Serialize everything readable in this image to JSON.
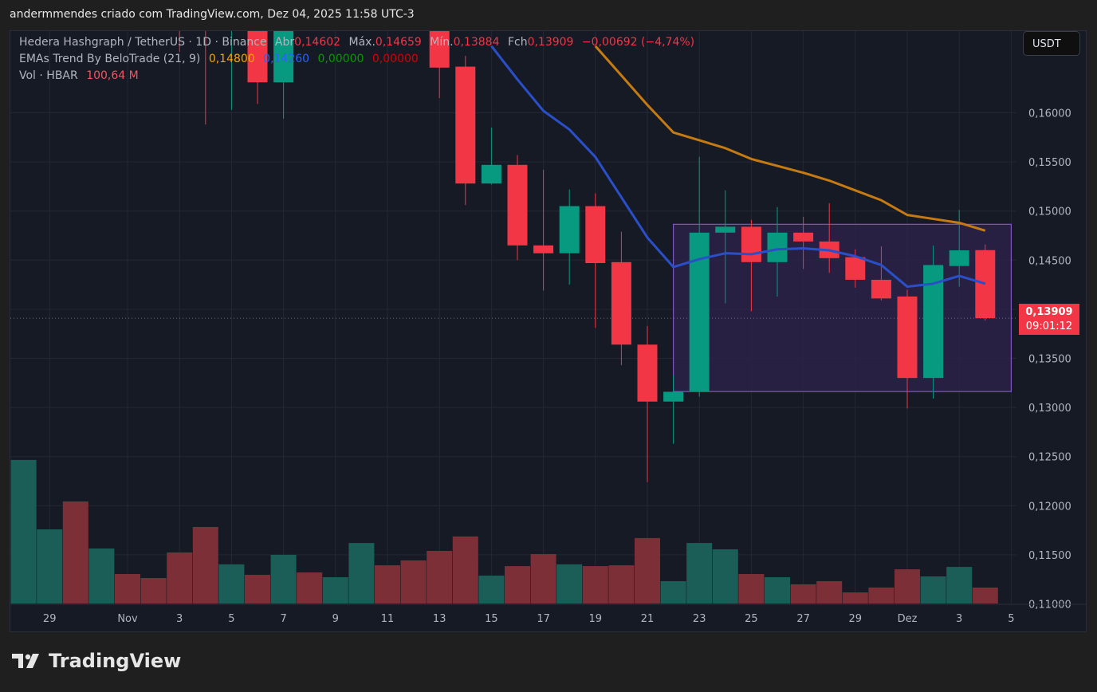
{
  "header": {
    "attribution": "andermmendes criado com TradingView.com, Dez 04, 2025 11:58 UTC-3"
  },
  "legend": {
    "symbol": "Hedera Hashgraph / TetherUS · 1D · Binance",
    "open_label": "Abr",
    "open": "0,14602",
    "high_label": "Máx.",
    "high": "0,14659",
    "low_label": "Mín.",
    "low": "0,13884",
    "close_label": "Fch",
    "close": "0,13909",
    "change": "−0,00692 (−4,74%)",
    "indicator": "EMAs Trend By BeloTrade (21, 9)",
    "ema21": "0,14800",
    "ema9": "0,14260",
    "v3": "0,00000",
    "v4": "0,00000",
    "volume_label": "Vol · HBAR",
    "volume": "100,64 M"
  },
  "currency_button": "USDT",
  "price_label": {
    "price": "0,13909",
    "countdown": "09:01:12"
  },
  "footer": {
    "brand": "TradingView"
  },
  "colors": {
    "up": "#089981",
    "down": "#f23645",
    "ema9": "#2a4fc9",
    "ema21": "#c57a12",
    "box_fill": "#2a2248",
    "box_border": "#7e57c2",
    "background": "#161a25"
  },
  "chart_data": {
    "type": "candlestick",
    "symbol": "HBAR/USDT",
    "interval": "1D",
    "ylim": [
      0.1085,
      0.1684
    ],
    "y_ticks": [
      "0,16000",
      "0,15500",
      "0,15000",
      "0,14500",
      "0,14000",
      "0,13500",
      "0,13000",
      "0,12500",
      "0,12000",
      "0,11500",
      "0,11000"
    ],
    "y_tick_values": [
      0.16,
      0.155,
      0.15,
      0.145,
      0.14,
      0.135,
      0.13,
      0.125,
      0.12,
      0.115,
      0.11
    ],
    "x_start": "2025-10-28",
    "x_ticks": [
      {
        "date": "2025-10-29",
        "label": "29"
      },
      {
        "date": "2025-11-01",
        "label": "Nov"
      },
      {
        "date": "2025-11-03",
        "label": "3"
      },
      {
        "date": "2025-11-05",
        "label": "5"
      },
      {
        "date": "2025-11-07",
        "label": "7"
      },
      {
        "date": "2025-11-09",
        "label": "9"
      },
      {
        "date": "2025-11-11",
        "label": "11"
      },
      {
        "date": "2025-11-13",
        "label": "13"
      },
      {
        "date": "2025-11-15",
        "label": "15"
      },
      {
        "date": "2025-11-17",
        "label": "17"
      },
      {
        "date": "2025-11-19",
        "label": "19"
      },
      {
        "date": "2025-11-21",
        "label": "21"
      },
      {
        "date": "2025-11-23",
        "label": "23"
      },
      {
        "date": "2025-11-25",
        "label": "25"
      },
      {
        "date": "2025-11-27",
        "label": "27"
      },
      {
        "date": "2025-11-29",
        "label": "29"
      },
      {
        "date": "2025-12-01",
        "label": "Dez"
      },
      {
        "date": "2025-12-03",
        "label": "3"
      },
      {
        "date": "2025-12-05",
        "label": "5"
      }
    ],
    "candles": [
      {
        "date": "2025-11-03",
        "o": 0.172,
        "h": 0.174,
        "l": 0.1662,
        "c": 0.17
      },
      {
        "date": "2025-11-04",
        "o": 0.172,
        "h": 0.175,
        "l": 0.1588,
        "c": 0.169
      },
      {
        "date": "2025-11-05",
        "o": 0.169,
        "h": 0.174,
        "l": 0.1603,
        "c": 0.171
      },
      {
        "date": "2025-11-06",
        "o": 0.171,
        "h": 0.173,
        "l": 0.1609,
        "c": 0.1631
      },
      {
        "date": "2025-11-07",
        "o": 0.1631,
        "h": 0.172,
        "l": 0.1594,
        "c": 0.17
      },
      {
        "date": "2025-11-13",
        "o": 0.172,
        "h": 0.175,
        "l": 0.1615,
        "c": 0.1646
      },
      {
        "date": "2025-11-14",
        "o": 0.1647,
        "h": 0.1658,
        "l": 0.1506,
        "c": 0.1528
      },
      {
        "date": "2025-11-15",
        "o": 0.1528,
        "h": 0.1585,
        "l": 0.1527,
        "c": 0.1547
      },
      {
        "date": "2025-11-16",
        "o": 0.1547,
        "h": 0.1557,
        "l": 0.145,
        "c": 0.1465
      },
      {
        "date": "2025-11-17",
        "o": 0.1465,
        "h": 0.1542,
        "l": 0.1419,
        "c": 0.1457
      },
      {
        "date": "2025-11-18",
        "o": 0.1457,
        "h": 0.1522,
        "l": 0.1425,
        "c": 0.1505
      },
      {
        "date": "2025-11-19",
        "o": 0.1505,
        "h": 0.1518,
        "l": 0.1381,
        "c": 0.1447
      },
      {
        "date": "2025-11-20",
        "o": 0.1448,
        "h": 0.1479,
        "l": 0.1343,
        "c": 0.1364
      },
      {
        "date": "2025-11-21",
        "o": 0.1364,
        "h": 0.1383,
        "l": 0.1224,
        "c": 0.1306
      },
      {
        "date": "2025-11-22",
        "o": 0.1306,
        "h": 0.1333,
        "l": 0.1263,
        "c": 0.1316
      },
      {
        "date": "2025-11-23",
        "o": 0.1316,
        "h": 0.1555,
        "l": 0.1311,
        "c": 0.1478
      },
      {
        "date": "2025-11-24",
        "o": 0.1478,
        "h": 0.1521,
        "l": 0.1406,
        "c": 0.1484
      },
      {
        "date": "2025-11-25",
        "o": 0.1484,
        "h": 0.1491,
        "l": 0.1398,
        "c": 0.1448
      },
      {
        "date": "2025-11-26",
        "o": 0.1448,
        "h": 0.1504,
        "l": 0.1413,
        "c": 0.1478
      },
      {
        "date": "2025-11-27",
        "o": 0.1478,
        "h": 0.1494,
        "l": 0.1441,
        "c": 0.1469
      },
      {
        "date": "2025-11-28",
        "o": 0.1469,
        "h": 0.1508,
        "l": 0.1437,
        "c": 0.1452
      },
      {
        "date": "2025-11-29",
        "o": 0.1453,
        "h": 0.1461,
        "l": 0.1422,
        "c": 0.143
      },
      {
        "date": "2025-11-30",
        "o": 0.143,
        "h": 0.1464,
        "l": 0.1409,
        "c": 0.1411
      },
      {
        "date": "2025-12-01",
        "o": 0.1413,
        "h": 0.142,
        "l": 0.1299,
        "c": 0.133
      },
      {
        "date": "2025-12-02",
        "o": 0.133,
        "h": 0.1465,
        "l": 0.1309,
        "c": 0.1445
      },
      {
        "date": "2025-12-03",
        "o": 0.1444,
        "h": 0.1501,
        "l": 0.1423,
        "c": 0.146
      },
      {
        "date": "2025-12-04",
        "o": 0.14602,
        "h": 0.14659,
        "l": 0.13884,
        "c": 0.13909
      }
    ],
    "ema9": [
      {
        "date": "2025-11-15",
        "v": 0.1668
      },
      {
        "date": "2025-11-16",
        "v": 0.1634
      },
      {
        "date": "2025-11-17",
        "v": 0.1602
      },
      {
        "date": "2025-11-18",
        "v": 0.1583
      },
      {
        "date": "2025-11-19",
        "v": 0.1555
      },
      {
        "date": "2025-11-20",
        "v": 0.1514
      },
      {
        "date": "2025-11-21",
        "v": 0.1473
      },
      {
        "date": "2025-11-22",
        "v": 0.1443
      },
      {
        "date": "2025-11-23",
        "v": 0.1451
      },
      {
        "date": "2025-11-24",
        "v": 0.1457
      },
      {
        "date": "2025-11-25",
        "v": 0.1456
      },
      {
        "date": "2025-11-26",
        "v": 0.1461
      },
      {
        "date": "2025-11-27",
        "v": 0.1462
      },
      {
        "date": "2025-11-28",
        "v": 0.146
      },
      {
        "date": "2025-11-29",
        "v": 0.1454
      },
      {
        "date": "2025-11-30",
        "v": 0.1445
      },
      {
        "date": "2025-12-01",
        "v": 0.1423
      },
      {
        "date": "2025-12-02",
        "v": 0.1426
      },
      {
        "date": "2025-12-03",
        "v": 0.1434
      },
      {
        "date": "2025-12-04",
        "v": 0.1426
      }
    ],
    "ema21": [
      {
        "date": "2025-11-19",
        "v": 0.1668
      },
      {
        "date": "2025-11-20",
        "v": 0.1638
      },
      {
        "date": "2025-11-21",
        "v": 0.1608
      },
      {
        "date": "2025-11-22",
        "v": 0.158
      },
      {
        "date": "2025-11-23",
        "v": 0.1572
      },
      {
        "date": "2025-11-24",
        "v": 0.1564
      },
      {
        "date": "2025-11-25",
        "v": 0.1553
      },
      {
        "date": "2025-11-26",
        "v": 0.1546
      },
      {
        "date": "2025-11-27",
        "v": 0.1539
      },
      {
        "date": "2025-11-28",
        "v": 0.1531
      },
      {
        "date": "2025-11-29",
        "v": 0.1521
      },
      {
        "date": "2025-11-30",
        "v": 0.1511
      },
      {
        "date": "2025-12-01",
        "v": 0.1496
      },
      {
        "date": "2025-12-02",
        "v": 0.1492
      },
      {
        "date": "2025-12-03",
        "v": 0.1488
      },
      {
        "date": "2025-12-04",
        "v": 0.148
      }
    ],
    "range_box": {
      "from": "2025-11-22",
      "to": "2025-12-05",
      "top": 0.14865,
      "bottom": 0.13162
    },
    "volume_millions": [
      906,
      468,
      644,
      347,
      186,
      161,
      322,
      483,
      247,
      181,
      307,
      196,
      166,
      382,
      241,
      272,
      332,
      423,
      176,
      236,
      312,
      247,
      236,
      241,
      413,
      141,
      382,
      342,
      186,
      166,
      121,
      141,
      70,
      101,
      216,
      171,
      231,
      100.64
    ],
    "volume_up": [
      true,
      true,
      false,
      true,
      false,
      false,
      false,
      false,
      true,
      false,
      true,
      false,
      true,
      true,
      false,
      false,
      false,
      false,
      true,
      false,
      false,
      true,
      false,
      false,
      false,
      true,
      true,
      true,
      false,
      true,
      false,
      false,
      false,
      false,
      false,
      true,
      true,
      false
    ],
    "last_price": 0.13909
  }
}
